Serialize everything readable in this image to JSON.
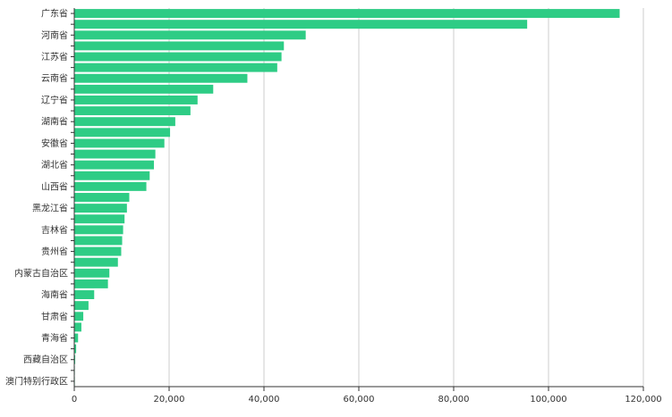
{
  "colors": {
    "bar": "#2ecc85",
    "grid": "#cccccc",
    "axis": "#333333"
  },
  "chart_data": {
    "type": "bar",
    "orientation": "horizontal",
    "title": "",
    "xlabel": "",
    "ylabel": "",
    "xlim": [
      0,
      120000
    ],
    "grid": true,
    "x_ticks": [
      "0",
      "20,000",
      "40,000",
      "60,000",
      "80,000",
      "100,000",
      "120,000"
    ],
    "x_tick_values": [
      0,
      20000,
      40000,
      60000,
      80000,
      100000,
      120000
    ],
    "categories": [
      "广东省",
      "",
      "河南省",
      "",
      "江苏省",
      "",
      "云南省",
      "",
      "辽宁省",
      "",
      "湖南省",
      "",
      "安徽省",
      "",
      "湖北省",
      "",
      "山西省",
      "",
      "黑龙江省",
      "",
      "吉林省",
      "",
      "贵州省",
      "",
      "内蒙古自治区",
      "",
      "海南省",
      "",
      "甘肃省",
      "",
      "青海省",
      "",
      "西藏自治区",
      "",
      "澳门特别行政区"
    ],
    "values": [
      115000,
      95500,
      48800,
      44200,
      43700,
      42800,
      36500,
      29300,
      26000,
      24500,
      21300,
      20200,
      19000,
      17100,
      16800,
      15900,
      15200,
      11600,
      11100,
      10600,
      10300,
      10100,
      9900,
      9200,
      7400,
      7100,
      4200,
      3000,
      1900,
      1500,
      800,
      400,
      200,
      100,
      50
    ]
  }
}
